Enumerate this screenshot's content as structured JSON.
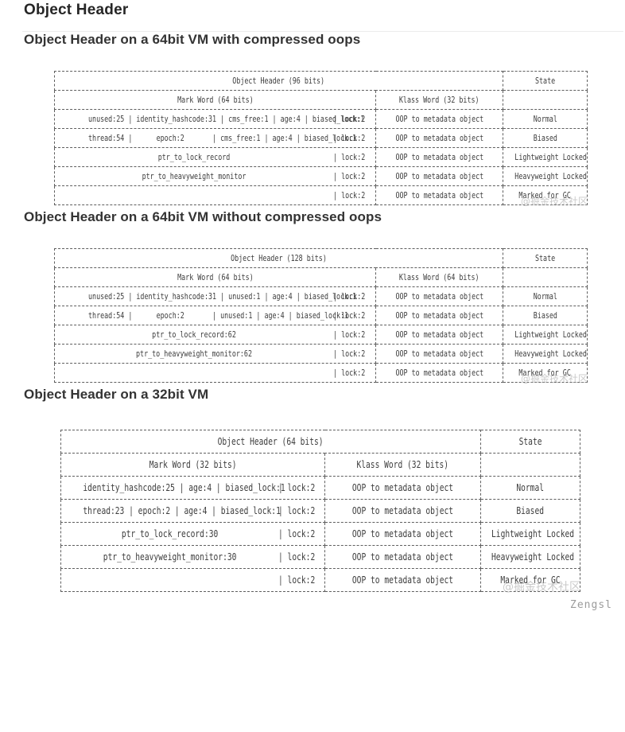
{
  "page": {
    "title": "Object Header",
    "footer": "Zengsl",
    "watermark": "@掘金技术社区"
  },
  "sections": [
    {
      "heading": "Object Header on a 64bit VM with compressed oops",
      "table": {
        "header_title": "Object Header (96 bits)",
        "state_label": "State",
        "mark_label": "Mark Word (64 bits)",
        "klass_label": "Klass Word (32 bits)",
        "rows": [
          {
            "mark_main": "unused:25 | identity_hashcode:31 | cms_free:1 | age:4 | biased_lock:1",
            "mark_lock": "| lock:2",
            "klass": "OOP to metadata object",
            "state": "Normal"
          },
          {
            "mark_main": "thread:54 |      epoch:2       | cms_free:1 | age:4 | biased_lock:1",
            "mark_lock": "| lock:2",
            "klass": "OOP to metadata object",
            "state": "Biased"
          },
          {
            "mark_main": "ptr_to_lock_record",
            "mark_lock": "| lock:2",
            "klass": "OOP to metadata object",
            "state": "Lightweight Locked"
          },
          {
            "mark_main": "ptr_to_heavyweight_monitor",
            "mark_lock": "| lock:2",
            "klass": "OOP to metadata object",
            "state": "Heavyweight Locked"
          },
          {
            "mark_main": "",
            "mark_lock": "| lock:2",
            "klass": "OOP to metadata object",
            "state": "Marked for GC"
          }
        ]
      }
    },
    {
      "heading": "Object Header on a 64bit VM without compressed oops",
      "table": {
        "header_title": "Object Header (128 bits)",
        "state_label": "State",
        "mark_label": "Mark Word (64 bits)",
        "klass_label": "Klass Word (64 bits)",
        "rows": [
          {
            "mark_main": "unused:25 | identity_hashcode:31 | unused:1 | age:4 | biased_lock:1",
            "mark_lock": "| lock:2",
            "klass": "OOP to metadata object",
            "state": "Normal"
          },
          {
            "mark_main": "thread:54 |      epoch:2       | unused:1 | age:4 | biased_lock:1",
            "mark_lock": "| lock:2",
            "klass": "OOP to metadata object",
            "state": "Biased"
          },
          {
            "mark_main": "ptr_to_lock_record:62",
            "mark_lock": "| lock:2",
            "klass": "OOP to metadata object",
            "state": "Lightweight Locked"
          },
          {
            "mark_main": "ptr_to_heavyweight_monitor:62",
            "mark_lock": "| lock:2",
            "klass": "OOP to metadata object",
            "state": "Heavyweight Locked"
          },
          {
            "mark_main": "",
            "mark_lock": "| lock:2",
            "klass": "OOP to metadata object",
            "state": "Marked for GC"
          }
        ]
      }
    },
    {
      "heading": "Object Header on a 32bit VM",
      "table": {
        "header_title": "Object Header (64 bits)",
        "state_label": "State",
        "mark_label": "Mark Word (32 bits)",
        "klass_label": "Klass Word (32 bits)",
        "rows": [
          {
            "mark_main": "identity_hashcode:25 | age:4 | biased_lock:1",
            "mark_lock": "| lock:2",
            "klass": "OOP to metadata object",
            "state": "Normal"
          },
          {
            "mark_main": "thread:23 | epoch:2 | age:4 | biased_lock:1",
            "mark_lock": "| lock:2",
            "klass": "OOP to metadata object",
            "state": "Biased"
          },
          {
            "mark_main": "ptr_to_lock_record:30",
            "mark_lock": "| lock:2",
            "klass": "OOP to metadata object",
            "state": "Lightweight Locked"
          },
          {
            "mark_main": "ptr_to_heavyweight_monitor:30",
            "mark_lock": "| lock:2",
            "klass": "OOP to metadata object",
            "state": "Heavyweight Locked"
          },
          {
            "mark_main": "",
            "mark_lock": "| lock:2",
            "klass": "OOP to metadata object",
            "state": "Marked for GC"
          }
        ]
      }
    }
  ]
}
